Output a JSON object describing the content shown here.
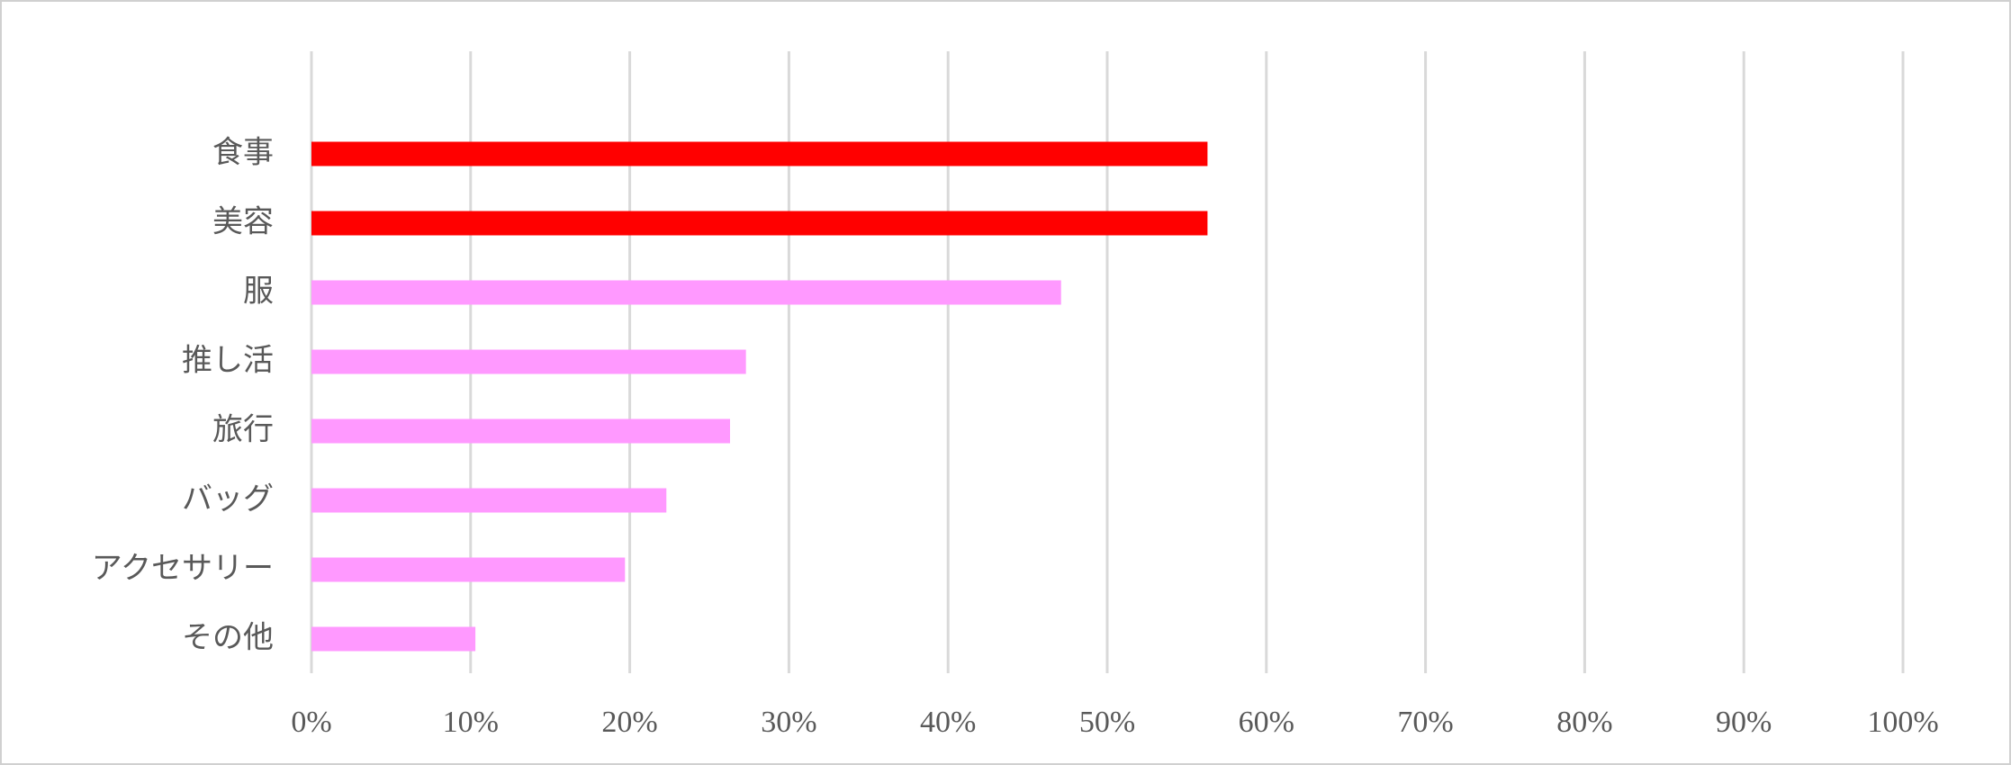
{
  "chart_data": {
    "type": "bar",
    "orientation": "horizontal",
    "categories": [
      "食事",
      "美容",
      "服",
      "推し活",
      "旅行",
      "バッグ",
      "アクセサリー",
      "その他"
    ],
    "values": [
      56.3,
      56.3,
      47.1,
      27.3,
      26.3,
      22.3,
      19.7,
      10.3
    ],
    "colors": [
      "#ff0000",
      "#ff0000",
      "#ff99ff",
      "#ff99ff",
      "#ff99ff",
      "#ff99ff",
      "#ff99ff",
      "#ff99ff"
    ],
    "xlim": [
      0,
      100
    ],
    "xticks": [
      {
        "value": 0,
        "label": "0%"
      },
      {
        "value": 10,
        "label": "10%"
      },
      {
        "value": 20,
        "label": "20%"
      },
      {
        "value": 30,
        "label": "30%"
      },
      {
        "value": 40,
        "label": "40%"
      },
      {
        "value": 50,
        "label": "50%"
      },
      {
        "value": 60,
        "label": "60%"
      },
      {
        "value": 70,
        "label": "70%"
      },
      {
        "value": 80,
        "label": "80%"
      },
      {
        "value": 90,
        "label": "90%"
      },
      {
        "value": 100,
        "label": "100%"
      }
    ],
    "grid": true
  }
}
